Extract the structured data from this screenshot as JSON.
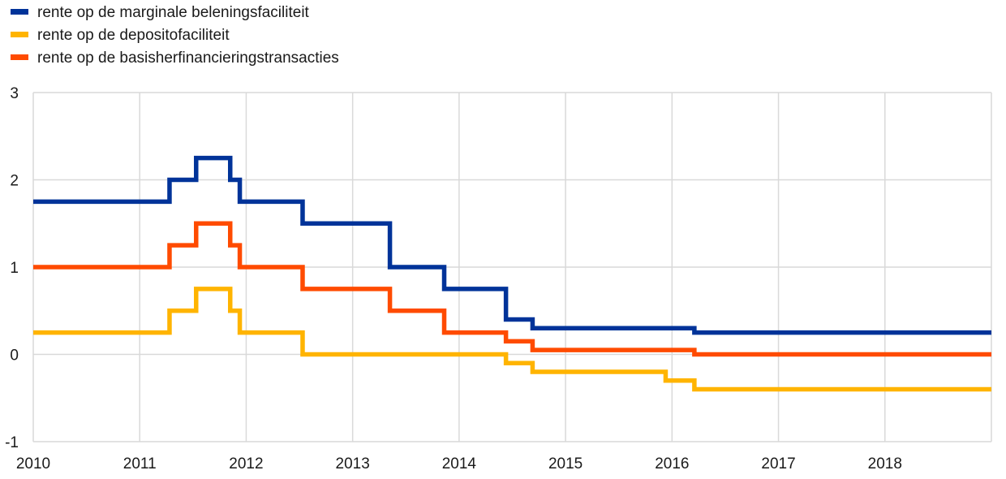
{
  "chart_data": {
    "type": "line",
    "step": true,
    "title": "",
    "xlabel": "",
    "ylabel": "",
    "ylim": [
      -1,
      3
    ],
    "yticks": [
      -1,
      0,
      1,
      2,
      3
    ],
    "xlim": [
      2010,
      2019
    ],
    "xticks": [
      2010,
      2011,
      2012,
      2013,
      2014,
      2015,
      2016,
      2017,
      2018
    ],
    "grid": true,
    "legend_position": "top-left",
    "series": [
      {
        "name": "rente op de marginale beleningsfaciliteit",
        "color": "#003399",
        "x": [
          2010.0,
          2011.28,
          2011.53,
          2011.85,
          2011.94,
          2012.53,
          2013.35,
          2013.86,
          2014.44,
          2014.69,
          2016.21,
          2019.0
        ],
        "y": [
          1.75,
          2.0,
          2.25,
          2.0,
          1.75,
          1.5,
          1.0,
          0.75,
          0.4,
          0.3,
          0.25,
          0.25
        ]
      },
      {
        "name": "rente op de depositofaciliteit",
        "color": "#ffb400",
        "x": [
          2010.0,
          2011.28,
          2011.53,
          2011.85,
          2011.94,
          2012.53,
          2014.44,
          2014.69,
          2015.94,
          2016.21,
          2019.0
        ],
        "y": [
          0.25,
          0.5,
          0.75,
          0.5,
          0.25,
          0.0,
          -0.1,
          -0.2,
          -0.3,
          -0.4,
          -0.4
        ]
      },
      {
        "name": "rente op de basisherfinancieringstransacties",
        "color": "#ff4b00",
        "x": [
          2010.0,
          2011.28,
          2011.53,
          2011.85,
          2011.94,
          2012.53,
          2013.35,
          2013.86,
          2014.44,
          2014.69,
          2016.21,
          2019.0
        ],
        "y": [
          1.0,
          1.25,
          1.5,
          1.25,
          1.0,
          0.75,
          0.5,
          0.25,
          0.15,
          0.05,
          0.0,
          0.0
        ]
      }
    ]
  }
}
